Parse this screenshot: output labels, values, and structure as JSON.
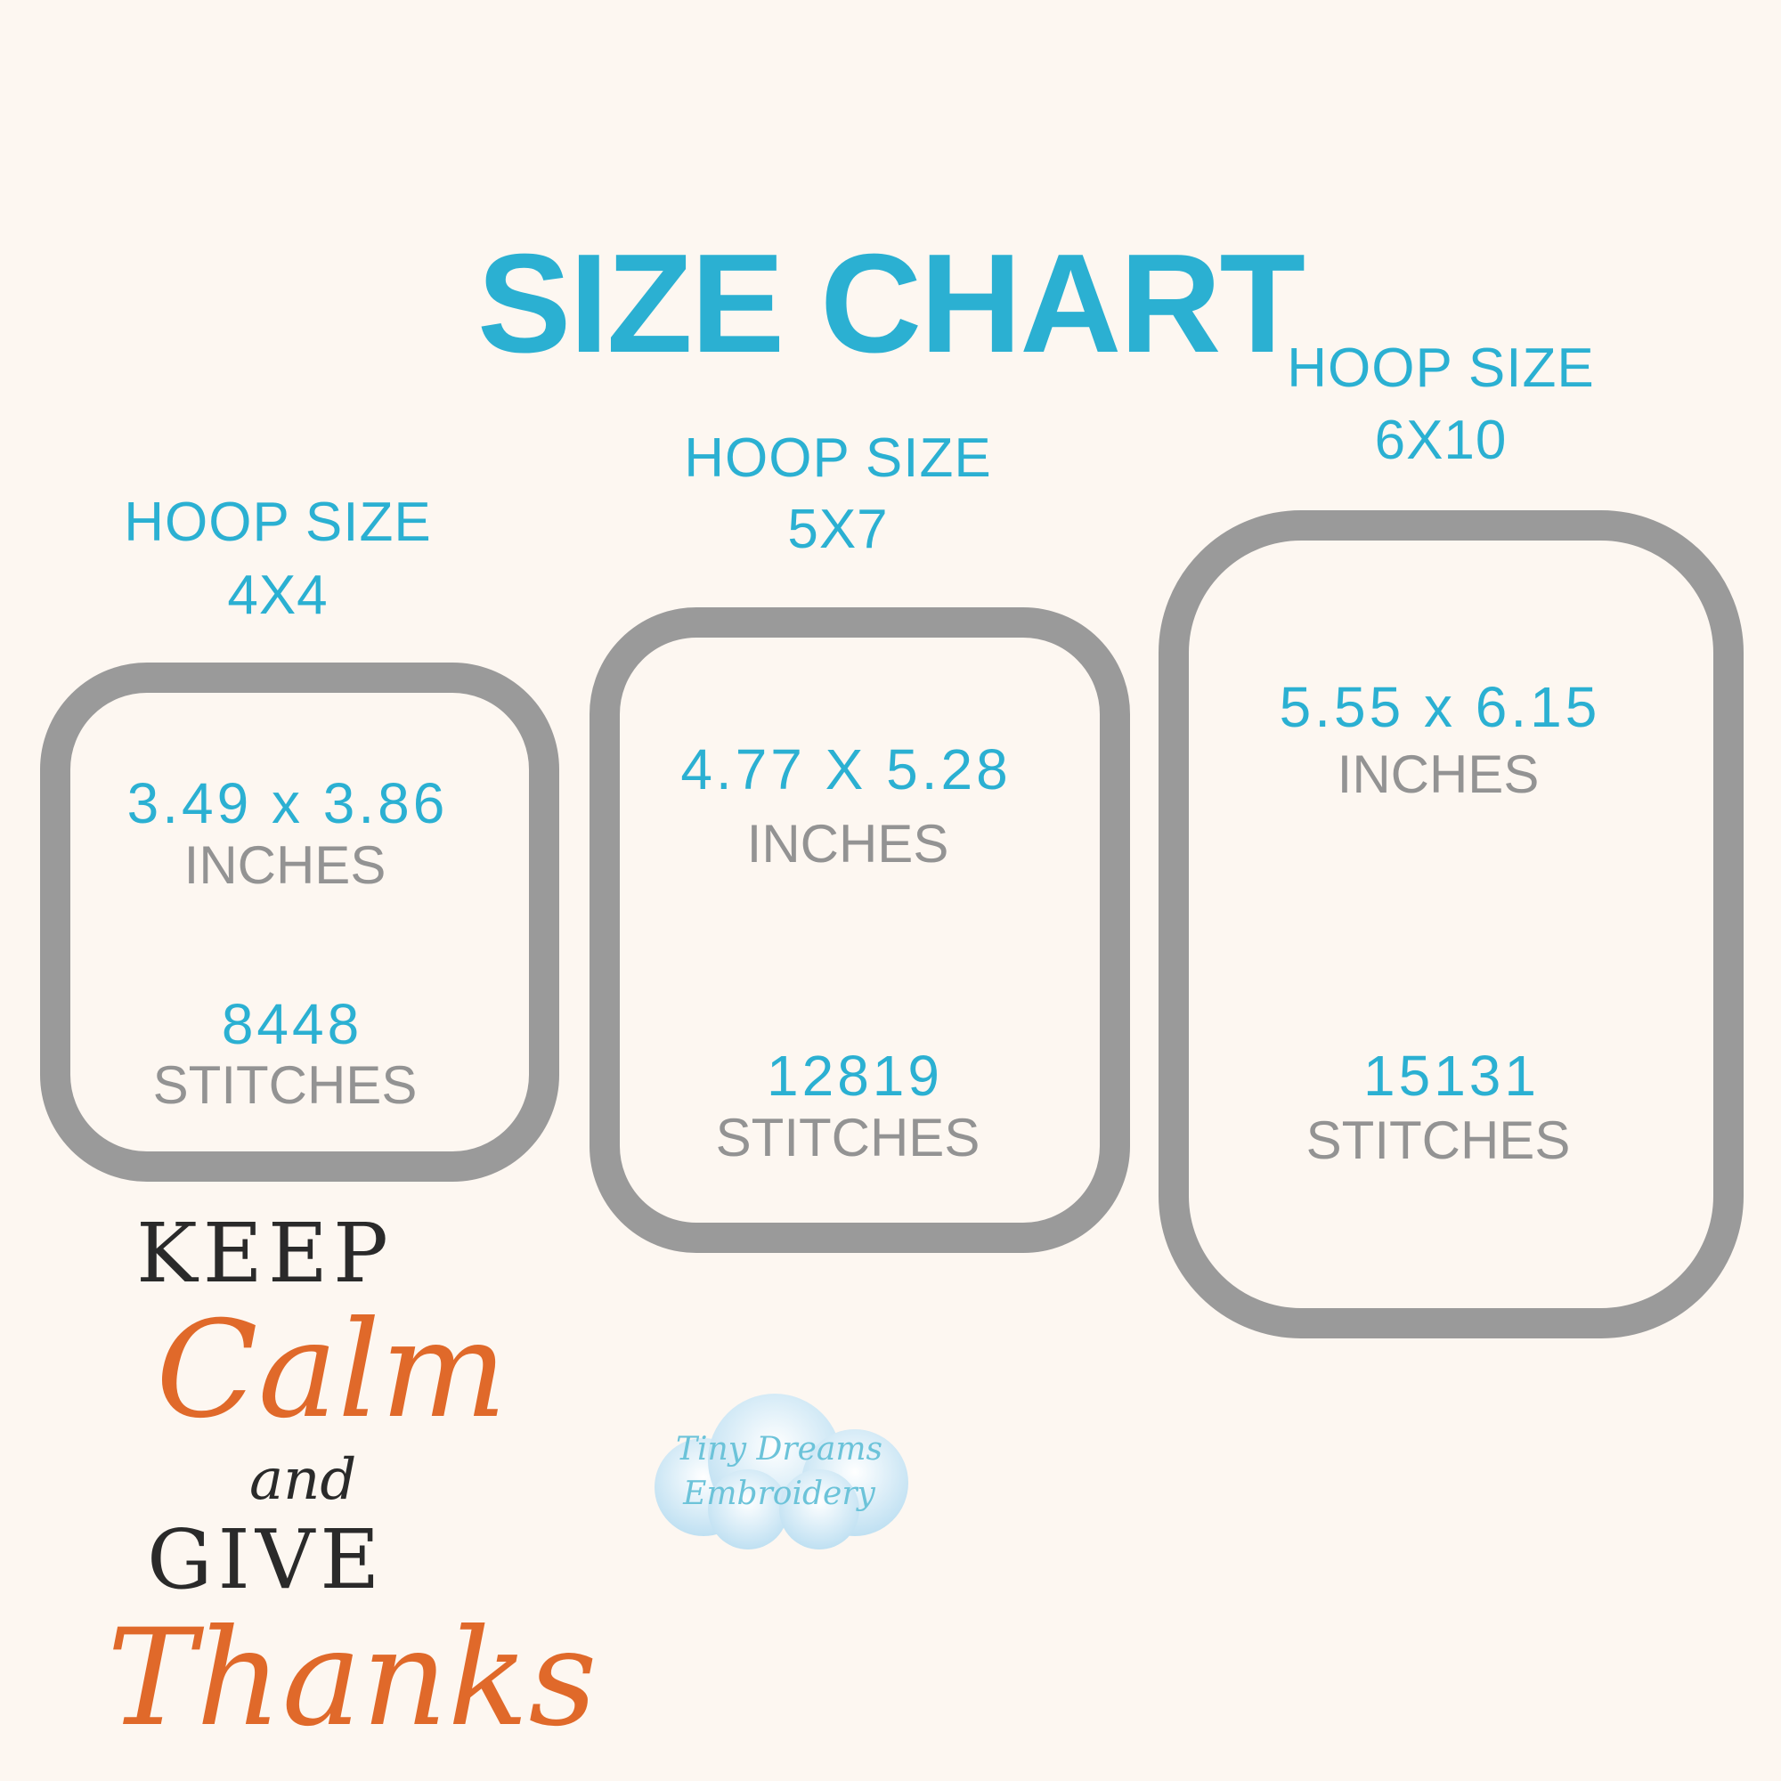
{
  "title": "SIZE CHART",
  "colors": {
    "background": "#fdf7f1",
    "accent": "#2bb0d2",
    "hoop_border": "#9a9a9a",
    "unit_text": "#939393",
    "art_orange": "#e0692a",
    "art_black": "#2a2a2a"
  },
  "hoops": [
    {
      "label": "HOOP SIZE",
      "size": "4X4",
      "dimensions": "3.49 x 3.86",
      "dim_unit": "INCHES",
      "stitches": "8448",
      "stitch_unit": "STITCHES"
    },
    {
      "label": "HOOP SIZE",
      "size": "5X7",
      "dimensions": "4.77 X 5.28",
      "dim_unit": "INCHES",
      "stitches": "12819",
      "stitch_unit": "STITCHES"
    },
    {
      "label": "HOOP SIZE",
      "size": "6X10",
      "dimensions": "5.55 x 6.15",
      "dim_unit": "INCHES",
      "stitches": "15131",
      "stitch_unit": "STITCHES"
    }
  ],
  "design": {
    "line1": "KEEP",
    "line2": "Calm",
    "line3": "and",
    "line4": "GIVE",
    "line5": "Thanks"
  },
  "watermark": {
    "line1": "Tiny Dreams",
    "line2": "Embroidery"
  }
}
